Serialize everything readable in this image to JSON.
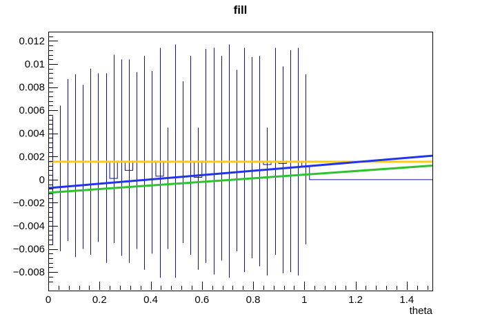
{
  "title": "fill",
  "chart_data": {
    "type": "histogram",
    "title": "fill",
    "xlabel": "theta",
    "ylabel": "",
    "xlim": [
      0,
      1.5
    ],
    "ylim": [
      -0.0096,
      0.0128
    ],
    "grid": false,
    "legend": "none",
    "background": "#ffffff",
    "frame_color": "#000000",
    "x_axis": {
      "major_tick_values": [
        0,
        0.2,
        0.4,
        0.6,
        0.8,
        1,
        1.2,
        1.4
      ],
      "major_tick_labels": [
        "0",
        "0.2",
        "0.4",
        "0.6",
        "0.8",
        "1",
        "1.2",
        "1.4"
      ],
      "minor_step": 0.04
    },
    "y_axis": {
      "major_tick_values": [
        0.012,
        0.01,
        0.008,
        0.006,
        0.004,
        0.002,
        0,
        -0.002,
        -0.004,
        -0.006,
        -0.008
      ],
      "major_tick_labels": [
        "0.012",
        "0.01",
        "0.008",
        "0.006",
        "0.004",
        "0.002",
        "0",
        "−0.002",
        "−0.004",
        "−0.006",
        "−0.008"
      ],
      "minor_step": 0.0004
    },
    "histogram": {
      "name": "fill-histogram",
      "color": "#0d0d99",
      "bin_width": 0.03,
      "bin_centers": [
        0.015,
        0.045,
        0.075,
        0.105,
        0.135,
        0.165,
        0.195,
        0.225,
        0.255,
        0.285,
        0.315,
        0.345,
        0.375,
        0.405,
        0.435,
        0.465,
        0.495,
        0.525,
        0.555,
        0.585,
        0.615,
        0.645,
        0.675,
        0.705,
        0.735,
        0.765,
        0.795,
        0.825,
        0.855,
        0.885,
        0.915,
        0.945,
        0.975,
        1.005
      ],
      "contents": [
        0.0015,
        0.0016,
        0.0015,
        0.0016,
        0.0015,
        0.0016,
        0.0015,
        0.0015,
        0.0001,
        0.0015,
        0.0008,
        0.0016,
        0.0015,
        0.0015,
        0.0003,
        0.0015,
        0.0016,
        0.0015,
        0.0015,
        0.0002,
        0.0015,
        0.0016,
        0.0015,
        0.0016,
        0.0015,
        0.0016,
        0.0015,
        0.0015,
        0.0013,
        0.0016,
        0.0014,
        0.0016,
        0.0015,
        0.0011
      ],
      "error_hi": [
        0.0055,
        0.0064,
        0.0087,
        0.0091,
        0.0082,
        0.0096,
        0.0092,
        0.0092,
        0.0108,
        0.0104,
        0.0104,
        0.0093,
        0.0107,
        0.0094,
        0.0114,
        0.0045,
        0.0117,
        0.0085,
        0.0107,
        0.0045,
        0.0113,
        0.0114,
        0.0107,
        0.0117,
        0.0095,
        0.0114,
        0.0106,
        0.0107,
        0.0045,
        0.0114,
        0.0098,
        0.0112,
        0.0114,
        0.0091
      ],
      "error_lo": [
        -0.0056,
        -0.0062,
        -0.0053,
        -0.0067,
        -0.006,
        -0.0065,
        -0.0054,
        -0.0072,
        -0.0055,
        -0.0066,
        -0.0072,
        -0.006,
        -0.0078,
        -0.0064,
        -0.0085,
        -0.006,
        -0.0085,
        -0.0055,
        -0.0065,
        -0.0078,
        -0.0072,
        -0.0082,
        -0.007,
        -0.0085,
        -0.0062,
        -0.008,
        -0.0068,
        -0.0075,
        -0.0083,
        -0.0065,
        -0.0081,
        -0.008,
        -0.0083,
        -0.0056
      ],
      "tail": {
        "x_from": 1.02,
        "x_to": 1.5,
        "content": 0
      }
    },
    "fits": [
      {
        "name": "constant-fit-orange",
        "color": "#ffcc00",
        "y_at_xmin": 0.00155,
        "y_at_xmax": 0.00155
      },
      {
        "name": "linear-fit-blue",
        "color": "#2233ee",
        "y_at_xmin": -0.00073,
        "y_at_xmax": 0.00207
      },
      {
        "name": "linear-fit-green",
        "color": "#2cc32c",
        "y_at_xmin": -0.00113,
        "y_at_xmax": 0.00121
      }
    ]
  }
}
